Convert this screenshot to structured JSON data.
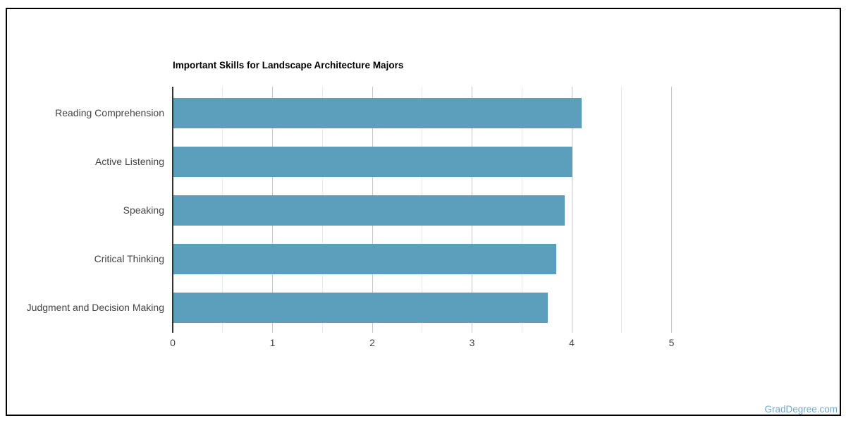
{
  "title": "Important Skills for Landscape Architecture Majors",
  "watermark": "GradDegree.com",
  "colors": {
    "bar": "#5b9fbd",
    "axis_line": "#333333",
    "grid_major": "#c6c6c6",
    "grid_minor": "#ebebeb",
    "label_text": "#444444",
    "title_text": "#000000",
    "watermark_text": "#74a7c7",
    "frame_border": "#000000",
    "background": "#ffffff"
  },
  "chart_data": {
    "type": "bar",
    "orientation": "horizontal",
    "title": "Important Skills for Landscape Architecture Majors",
    "categories": [
      "Reading Comprehension",
      "Active Listening",
      "Speaking",
      "Critical Thinking",
      "Judgment and Decision Making"
    ],
    "values": [
      4.09,
      4.0,
      3.92,
      3.84,
      3.75
    ],
    "xlabel": "",
    "ylabel": "",
    "xlim": [
      0,
      5
    ],
    "x_ticks": [
      0,
      1,
      2,
      3,
      4,
      5
    ],
    "x_minor_step": 0.5,
    "grid": "vertical",
    "legend": "none"
  }
}
